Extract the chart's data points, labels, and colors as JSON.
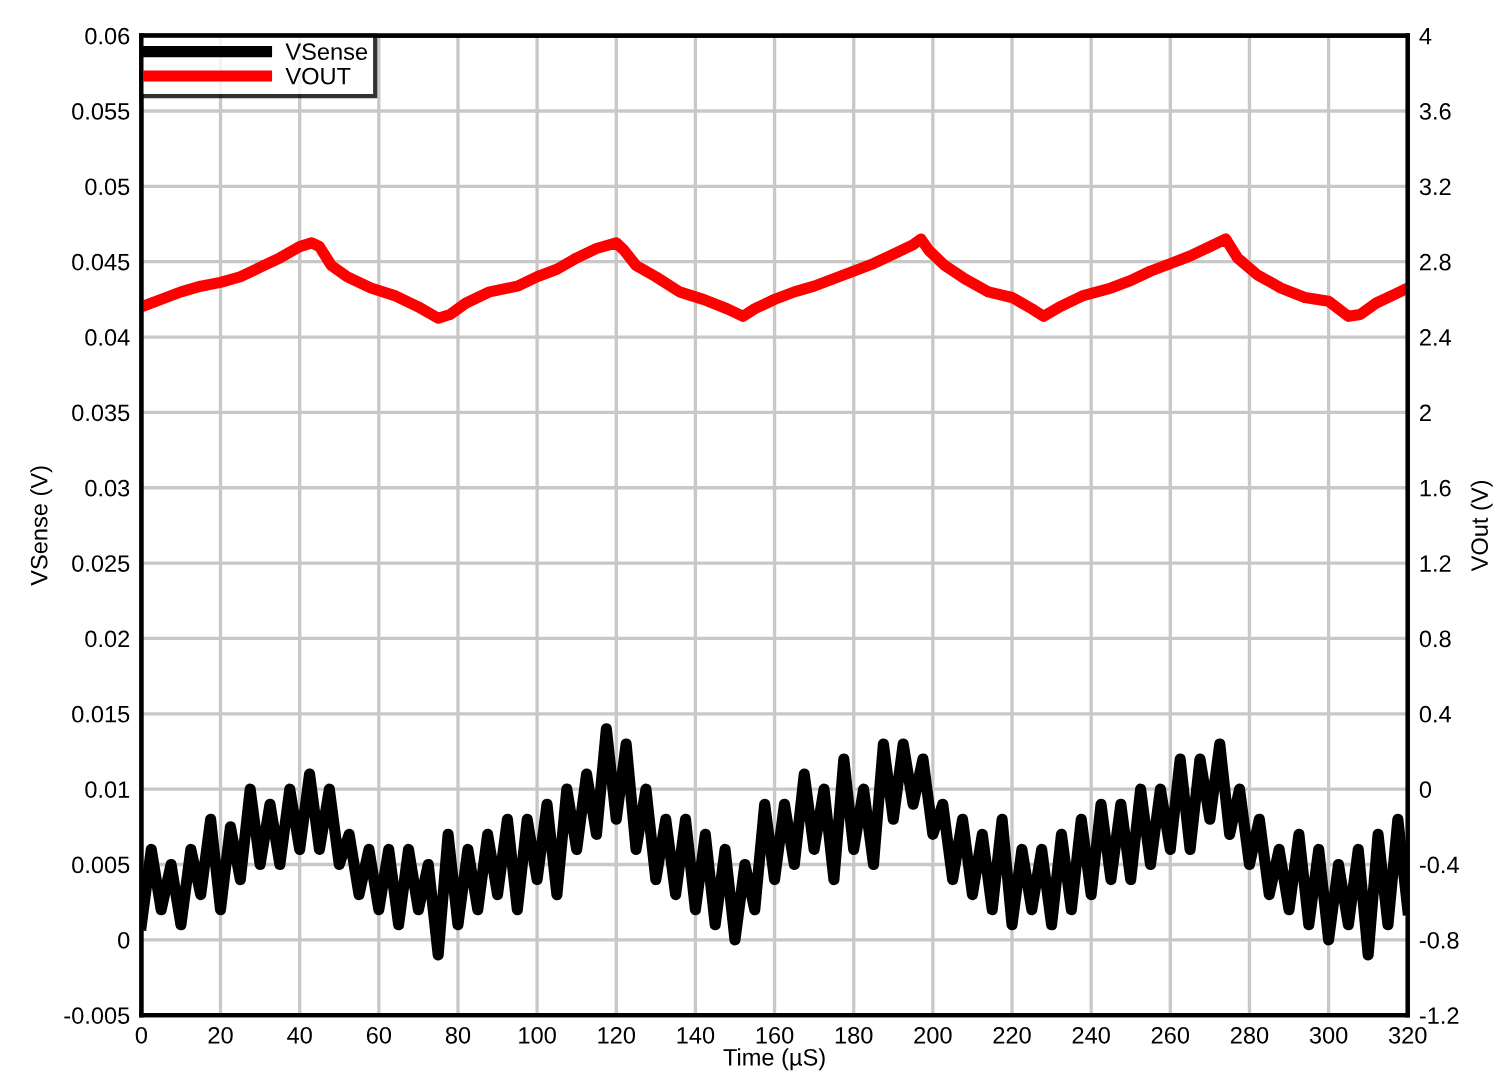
{
  "chart_data": {
    "type": "line",
    "xlabel": "Time (µS)",
    "ylabel": "VSense (V)",
    "y2label": "VOut (V)",
    "xlim": [
      0,
      320
    ],
    "xticks": [
      0,
      20,
      40,
      60,
      80,
      100,
      120,
      140,
      160,
      180,
      200,
      220,
      240,
      260,
      280,
      300,
      320
    ],
    "ylim": [
      -0.005,
      0.06
    ],
    "yticks": [
      -0.005,
      0,
      0.005,
      0.01,
      0.015,
      0.02,
      0.025,
      0.03,
      0.035,
      0.04,
      0.045,
      0.05,
      0.055,
      0.06
    ],
    "y2lim": [
      -1.2,
      4
    ],
    "y2ticks": [
      -1.2,
      -0.8,
      -0.4,
      0,
      0.4,
      0.8,
      1.2,
      1.6,
      2,
      2.4,
      2.8,
      3.2,
      3.6,
      4
    ],
    "grid": true,
    "legend": "top left",
    "line_style": "solid",
    "series": [
      {
        "name": "VSense",
        "color": "#000000",
        "x": [
          0,
          2.5,
          5,
          7.5,
          10,
          12.5,
          15,
          17.5,
          20,
          22.5,
          25,
          27.5,
          30,
          32.5,
          35,
          37.5,
          40,
          42.5,
          45,
          47.5,
          50,
          52.5,
          55,
          57.5,
          60,
          62.5,
          65,
          67.5,
          70,
          72.5,
          75,
          77.5,
          80,
          82.5,
          85,
          87.5,
          90,
          92.5,
          95,
          97.5,
          100,
          102.5,
          105,
          107.5,
          110,
          112.5,
          115,
          117.5,
          120,
          122.5,
          125,
          127.5,
          130,
          132.5,
          135,
          137.5,
          140,
          142.5,
          145,
          147.5,
          150,
          152.5,
          155,
          157.5,
          160,
          162.5,
          165,
          167.5,
          170,
          172.5,
          175,
          177.5,
          180,
          182.5,
          185,
          187.5,
          190,
          192.5,
          195,
          197.5,
          200,
          202.5,
          205,
          207.5,
          210,
          212.5,
          215,
          217.5,
          220,
          222.5,
          225,
          227.5,
          230,
          232.5,
          235,
          237.5,
          240,
          242.5,
          245,
          247.5,
          250,
          252.5,
          255,
          257.5,
          260,
          262.5,
          265,
          267.5,
          270,
          272.5,
          275,
          277.5,
          280,
          282.5,
          285,
          287.5,
          290,
          292.5,
          295,
          297.5,
          300,
          302.5,
          305,
          307.5,
          310,
          312.5,
          315,
          317.5,
          320
        ],
        "values": [
          0.001,
          0.006,
          0.002,
          0.005,
          0.001,
          0.006,
          0.003,
          0.008,
          0.002,
          0.0075,
          0.004,
          0.01,
          0.005,
          0.009,
          0.005,
          0.01,
          0.006,
          0.011,
          0.006,
          0.01,
          0.005,
          0.007,
          0.003,
          0.006,
          0.002,
          0.006,
          0.001,
          0.006,
          0.002,
          0.005,
          -0.001,
          0.007,
          0.001,
          0.006,
          0.002,
          0.007,
          0.003,
          0.008,
          0.002,
          0.008,
          0.004,
          0.009,
          0.003,
          0.01,
          0.006,
          0.011,
          0.007,
          0.014,
          0.008,
          0.013,
          0.006,
          0.01,
          0.004,
          0.008,
          0.003,
          0.008,
          0.002,
          0.007,
          0.001,
          0.006,
          0.0,
          0.005,
          0.002,
          0.009,
          0.004,
          0.009,
          0.005,
          0.011,
          0.006,
          0.01,
          0.004,
          0.012,
          0.006,
          0.01,
          0.005,
          0.013,
          0.008,
          0.013,
          0.009,
          0.012,
          0.007,
          0.009,
          0.004,
          0.008,
          0.003,
          0.007,
          0.002,
          0.008,
          0.001,
          0.006,
          0.002,
          0.006,
          0.001,
          0.007,
          0.002,
          0.008,
          0.003,
          0.009,
          0.004,
          0.009,
          0.004,
          0.01,
          0.005,
          0.01,
          0.006,
          0.012,
          0.006,
          0.012,
          0.008,
          0.013,
          0.007,
          0.01,
          0.005,
          0.008,
          0.003,
          0.006,
          0.002,
          0.007,
          0.001,
          0.006,
          0.0,
          0.005,
          0.001,
          0.006,
          -0.001,
          0.007,
          0.001,
          0.008,
          0.002
        ]
      },
      {
        "name": "VOUT",
        "color": "#ff0000",
        "axis": "y2",
        "x": [
          0,
          5,
          10,
          15,
          20,
          25,
          30,
          35,
          40,
          43,
          45,
          48,
          52,
          58,
          64,
          70,
          75,
          78,
          82,
          88,
          95,
          100,
          105,
          110,
          115,
          120,
          122,
          125,
          130,
          136,
          142,
          148,
          152,
          155,
          160,
          165,
          170,
          175,
          180,
          185,
          190,
          195,
          197,
          199,
          203,
          208,
          214,
          220,
          225,
          228,
          232,
          238,
          245,
          250,
          255,
          260,
          265,
          270,
          274,
          277,
          282,
          288,
          294,
          300,
          305,
          308,
          312,
          317,
          320
        ],
        "values": [
          2.56,
          2.6,
          2.64,
          2.67,
          2.69,
          2.72,
          2.77,
          2.82,
          2.88,
          2.9,
          2.88,
          2.78,
          2.72,
          2.66,
          2.62,
          2.56,
          2.5,
          2.52,
          2.58,
          2.64,
          2.67,
          2.72,
          2.76,
          2.82,
          2.87,
          2.9,
          2.86,
          2.78,
          2.72,
          2.64,
          2.6,
          2.55,
          2.51,
          2.55,
          2.6,
          2.64,
          2.67,
          2.71,
          2.75,
          2.79,
          2.84,
          2.89,
          2.92,
          2.86,
          2.78,
          2.71,
          2.64,
          2.61,
          2.55,
          2.51,
          2.56,
          2.62,
          2.66,
          2.7,
          2.75,
          2.79,
          2.83,
          2.88,
          2.92,
          2.82,
          2.73,
          2.66,
          2.61,
          2.59,
          2.51,
          2.52,
          2.58,
          2.63,
          2.66
        ]
      }
    ]
  }
}
